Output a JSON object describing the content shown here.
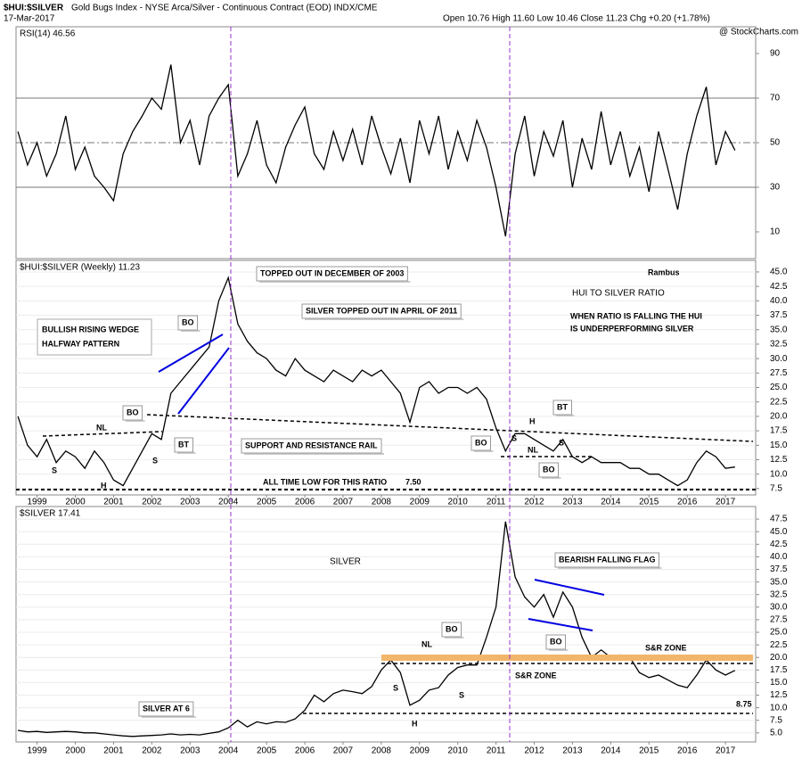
{
  "header": {
    "symbol": "$HUI:$SILVER",
    "description": "Gold Bugs Index - NYSE Arca/Silver - Continuous Contract (EOD)  INDX/CME",
    "date": "17-Mar-2017",
    "quote": "Open 10.76 High 11.60 Low 10.46 Close 11.23 Chg +0.20 (+1.78%)",
    "watermark": "@ StockCharts.com"
  },
  "chart_data": [
    {
      "type": "line",
      "x": [
        1998.5,
        1998.75,
        1999,
        1999.25,
        1999.5,
        1999.75,
        2000,
        2000.25,
        2000.5,
        2000.75,
        2001,
        2001.25,
        2001.5,
        2001.75,
        2002,
        2002.25,
        2002.5,
        2002.75,
        2003,
        2003.25,
        2003.5,
        2003.75,
        2004,
        2004.25,
        2004.5,
        2004.75,
        2005,
        2005.25,
        2005.5,
        2005.75,
        2006,
        2006.25,
        2006.5,
        2006.75,
        2007,
        2007.25,
        2007.5,
        2007.75,
        2008,
        2008.25,
        2008.5,
        2008.75,
        2009,
        2009.25,
        2009.5,
        2009.75,
        2010,
        2010.25,
        2010.5,
        2010.75,
        2011,
        2011.25,
        2011.5,
        2011.75,
        2012,
        2012.25,
        2012.5,
        2012.75,
        2013,
        2013.25,
        2013.5,
        2013.75,
        2014,
        2014.25,
        2014.5,
        2014.75,
        2015,
        2015.25,
        2015.5,
        2015.75,
        2016,
        2016.25,
        2016.5,
        2016.75,
        2017,
        2017.25
      ],
      "series": [
        {
          "name": "RSI(14) 46.56",
          "color": "#000000",
          "values": [
            55,
            40,
            50,
            35,
            45,
            62,
            38,
            48,
            35,
            30,
            24,
            45,
            55,
            62,
            70,
            65,
            85,
            50,
            60,
            40,
            62,
            70,
            76,
            35,
            45,
            60,
            40,
            32,
            48,
            58,
            66,
            45,
            38,
            55,
            42,
            56,
            40,
            62,
            48,
            36,
            52,
            32,
            60,
            45,
            62,
            38,
            55,
            42,
            60,
            48,
            30,
            8,
            45,
            62,
            35,
            55,
            44,
            60,
            30,
            52,
            38,
            64,
            40,
            55,
            35,
            48,
            28,
            55,
            38,
            20,
            45,
            62,
            75,
            40,
            55,
            46.56
          ]
        }
      ],
      "xlim": [
        1998.45,
        2017.79
      ],
      "ylim": [
        -2,
        102
      ],
      "yticks": [
        10,
        30,
        50,
        70,
        90
      ]
    },
    {
      "type": "line",
      "x": [
        1998.5,
        1998.75,
        1999,
        1999.25,
        1999.5,
        1999.75,
        2000,
        2000.25,
        2000.5,
        2000.75,
        2001,
        2001.25,
        2001.5,
        2001.75,
        2002,
        2002.25,
        2002.5,
        2002.75,
        2003,
        2003.25,
        2003.5,
        2003.75,
        2004,
        2004.25,
        2004.5,
        2004.75,
        2005,
        2005.25,
        2005.5,
        2005.75,
        2006,
        2006.25,
        2006.5,
        2006.75,
        2007,
        2007.25,
        2007.5,
        2007.75,
        2008,
        2008.25,
        2008.5,
        2008.75,
        2009,
        2009.25,
        2009.5,
        2009.75,
        2010,
        2010.25,
        2010.5,
        2010.75,
        2011,
        2011.25,
        2011.5,
        2011.75,
        2012,
        2012.25,
        2012.5,
        2012.75,
        2013,
        2013.25,
        2013.5,
        2013.75,
        2014,
        2014.25,
        2014.5,
        2014.75,
        2015,
        2015.25,
        2015.5,
        2015.75,
        2016,
        2016.25,
        2016.5,
        2016.75,
        2017,
        2017.25
      ],
      "series": [
        {
          "name": "$HUI:$SILVER (Weekly) 11.23",
          "color": "#000000",
          "values": [
            20,
            15,
            13,
            16,
            12,
            14,
            13,
            11,
            14,
            12,
            9,
            8,
            11,
            14,
            17,
            16,
            24,
            26,
            28,
            30,
            32,
            40,
            44,
            36,
            33,
            31,
            30,
            28,
            27,
            30,
            28,
            27,
            26,
            28,
            27,
            26,
            28,
            27,
            28,
            26,
            24,
            19,
            25,
            26,
            24,
            25,
            25,
            24,
            25,
            23,
            18,
            14,
            17,
            17,
            16,
            15,
            14,
            16,
            13,
            12,
            13,
            12,
            12,
            12,
            11,
            11,
            10,
            10,
            9,
            8,
            9,
            12,
            14,
            13,
            11,
            11.23
          ]
        }
      ],
      "xlim": [
        1998.45,
        2017.79
      ],
      "ylim": [
        6.4,
        47.0
      ],
      "xticks": [
        1999,
        2000,
        2001,
        2002,
        2003,
        2004,
        2005,
        2006,
        2007,
        2008,
        2009,
        2010,
        2011,
        2012,
        2013,
        2014,
        2015,
        2016,
        2017
      ],
      "yticks": [
        7.5,
        {
          "value": 10,
          "label": "10.0"
        },
        12.5,
        {
          "value": 15,
          "label": "15.0"
        },
        17.5,
        {
          "value": 20,
          "label": "20.0"
        },
        22.5,
        {
          "value": 25,
          "label": "25.0"
        },
        27.5,
        {
          "value": 30,
          "label": "30.0"
        },
        32.5,
        {
          "value": 35,
          "label": "35.0"
        },
        37.5,
        {
          "value": 40,
          "label": "40.0"
        },
        42.5,
        {
          "value": 45,
          "label": "45.0"
        }
      ],
      "grid": true,
      "annotations": [
        "TOPPED OUT IN DECEMBER OF 2003",
        "Rambus",
        "HUI TO SILVER RATIO",
        "WHEN RATIO IS FALLING THE HUI",
        "IS UNDERPERFORMING SILVER",
        "SILVER TOPPED OUT IN APRIL OF 2011",
        "BULLISH RISING WEDGE",
        "HALFWAY PATTERN",
        "BO",
        "BO",
        "BT",
        "NL",
        "S",
        "S",
        "H",
        "SUPPORT AND RESISTANCE RAIL",
        "ALL TIME  LOW FOR THIS RATIO",
        "7.50",
        "BO",
        "S",
        "H",
        "BT",
        "NL",
        "S",
        "BO"
      ]
    },
    {
      "type": "line",
      "x": [
        1998.5,
        1998.75,
        1999,
        1999.25,
        1999.5,
        1999.75,
        2000,
        2000.25,
        2000.5,
        2000.75,
        2001,
        2001.25,
        2001.5,
        2001.75,
        2002,
        2002.25,
        2002.5,
        2002.75,
        2003,
        2003.25,
        2003.5,
        2003.75,
        2004,
        2004.25,
        2004.5,
        2004.75,
        2005,
        2005.25,
        2005.5,
        2005.75,
        2006,
        2006.25,
        2006.5,
        2006.75,
        2007,
        2007.25,
        2007.5,
        2007.75,
        2008,
        2008.25,
        2008.5,
        2008.75,
        2009,
        2009.25,
        2009.5,
        2009.75,
        2010,
        2010.25,
        2010.5,
        2010.75,
        2011,
        2011.25,
        2011.5,
        2011.75,
        2012,
        2012.25,
        2012.5,
        2012.75,
        2013,
        2013.25,
        2013.5,
        2013.75,
        2014,
        2014.25,
        2014.5,
        2014.75,
        2015,
        2015.25,
        2015.5,
        2015.75,
        2016,
        2016.25,
        2016.5,
        2016.75,
        2017,
        2017.25
      ],
      "series": [
        {
          "name": "$SILVER 17.41",
          "color": "#000000",
          "values": [
            5.5,
            5.2,
            5.3,
            5.1,
            5.2,
            5.3,
            5.2,
            5.0,
            5.0,
            4.8,
            4.6,
            4.4,
            4.3,
            4.4,
            4.5,
            4.6,
            4.8,
            4.6,
            4.7,
            4.6,
            4.9,
            5.2,
            6.0,
            7.5,
            6.2,
            7.2,
            6.8,
            7.2,
            7.1,
            7.8,
            9.5,
            12.5,
            11.2,
            12.8,
            13.5,
            13.2,
            12.8,
            14.2,
            17.5,
            19.5,
            17.0,
            10.5,
            11.5,
            13.5,
            14.0,
            16.5,
            18.0,
            18.5,
            18.5,
            24.0,
            30.0,
            47.0,
            36.0,
            32.0,
            30.0,
            32.5,
            28.0,
            33.0,
            30.0,
            24.0,
            20.0,
            21.5,
            20.0,
            20.5,
            20.0,
            17.0,
            16.0,
            16.5,
            15.5,
            14.5,
            14.0,
            16.5,
            19.5,
            17.5,
            16.5,
            17.41
          ]
        }
      ],
      "xlim": [
        1998.45,
        2017.79
      ],
      "ylim": [
        3.2,
        50.0
      ],
      "xticks": [
        1999,
        2000,
        2001,
        2002,
        2003,
        2004,
        2005,
        2006,
        2007,
        2008,
        2009,
        2010,
        2011,
        2012,
        2013,
        2014,
        2015,
        2016,
        2017
      ],
      "yticks": [
        {
          "value": 5,
          "label": "5.0"
        },
        7.5,
        {
          "value": 10,
          "label": "10.0"
        },
        12.5,
        {
          "value": 15,
          "label": "15.0"
        },
        17.5,
        {
          "value": 20,
          "label": "20.0"
        },
        22.5,
        {
          "value": 25,
          "label": "25.0"
        },
        27.5,
        {
          "value": 30,
          "label": "30.0"
        },
        32.5,
        {
          "value": 35,
          "label": "35.0"
        },
        37.5,
        {
          "value": 40,
          "label": "40.0"
        },
        42.5,
        {
          "value": 45,
          "label": "45.0"
        },
        47.5
      ],
      "grid": true,
      "annotations": [
        "SILVER",
        "BEARISH FALLING FLAG",
        "BO",
        "NL",
        "S",
        "H",
        "S",
        "BO",
        "S&R ZONE",
        "S&R ZONE",
        "8.75",
        "SILVER AT 6"
      ]
    }
  ]
}
